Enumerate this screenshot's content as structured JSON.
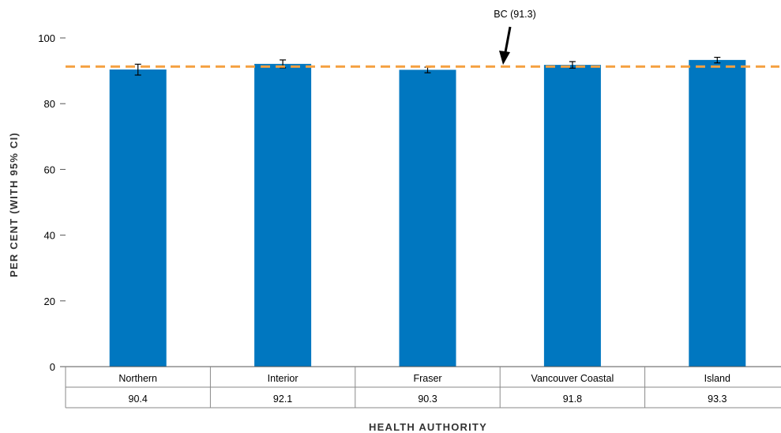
{
  "chart_data": {
    "type": "bar",
    "categories": [
      "Northern",
      "Interior",
      "Fraser",
      "Vancouver Coastal",
      "Island"
    ],
    "values": [
      90.4,
      92.1,
      90.3,
      91.8,
      93.3
    ],
    "value_labels": [
      "90.4",
      "92.1",
      "90.3",
      "91.8",
      "93.3"
    ],
    "ci_lower": [
      88.7,
      90.9,
      89.4,
      90.8,
      92.4
    ],
    "ci_upper": [
      92.0,
      93.3,
      91.1,
      92.8,
      94.1
    ],
    "xlabel": "HEALTH AUTHORITY",
    "ylabel": "PER CENT (WITH 95% CI)",
    "ylim": [
      0,
      100
    ],
    "yticks": [
      0,
      20,
      40,
      60,
      80,
      100
    ],
    "reference_line": {
      "value": 91.3,
      "label": "BC (91.3)",
      "color": "#F5A040",
      "style": "dashed"
    },
    "bar_color": "#0077C0",
    "grid": false,
    "legend": "none"
  }
}
